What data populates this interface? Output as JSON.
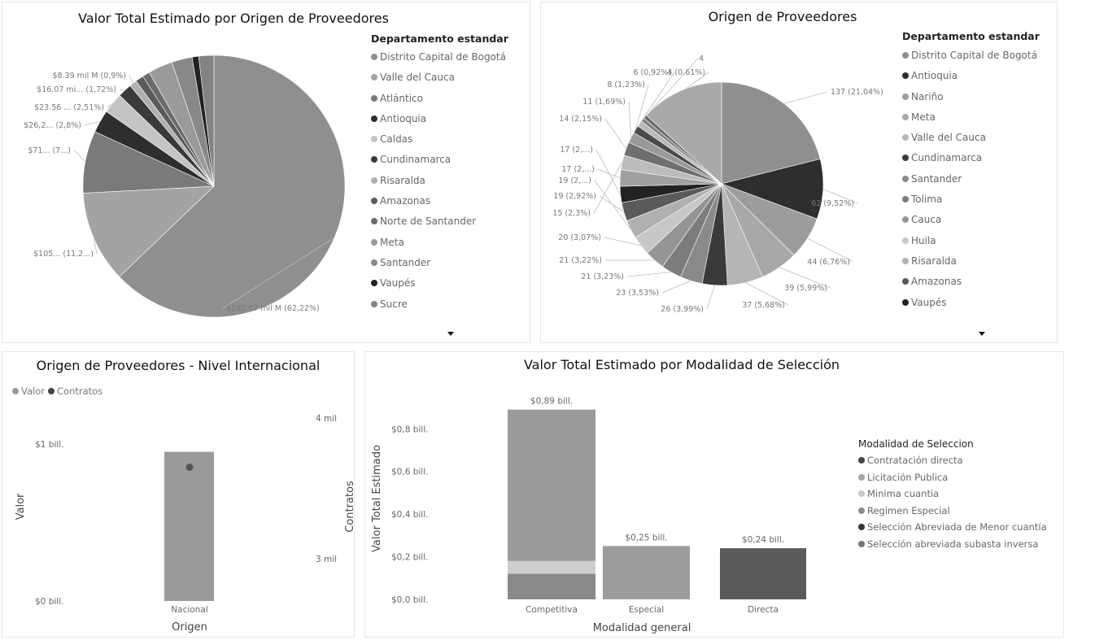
{
  "panels": {
    "pie1": {
      "title": "Valor Total Estimado por Origen de Proveedores",
      "legend_title": "Departamento estandar",
      "legend": [
        {
          "name": "Distrito Capital de Bogotá",
          "color": "#8f8f8f"
        },
        {
          "name": "Valle del Cauca",
          "color": "#a3a3a3"
        },
        {
          "name": "Atlántico",
          "color": "#7a7a7a"
        },
        {
          "name": "Antioquia",
          "color": "#2e2e2e"
        },
        {
          "name": "Caldas",
          "color": "#c4c4c4"
        },
        {
          "name": "Cundinamarca",
          "color": "#3a3a3a"
        },
        {
          "name": "Risaralda",
          "color": "#b0b0b0"
        },
        {
          "name": "Amazonas",
          "color": "#5a5a5a"
        },
        {
          "name": "Norte de Santander",
          "color": "#6a6a6a"
        },
        {
          "name": "Meta",
          "color": "#9a9a9a"
        },
        {
          "name": "Santander",
          "color": "#888888"
        },
        {
          "name": "Vaupés",
          "color": "#222222"
        },
        {
          "name": "Sucre",
          "color": "#838383"
        }
      ]
    },
    "pie2": {
      "title": "Origen de Proveedores",
      "legend_title": "Departamento estandar",
      "legend": [
        {
          "name": "Distrito Capital de Bogotá",
          "color": "#8f8f8f"
        },
        {
          "name": "Antioquia",
          "color": "#2e2e2e"
        },
        {
          "name": "Nariño",
          "color": "#9c9c9c"
        },
        {
          "name": "Meta",
          "color": "#a8a8a8"
        },
        {
          "name": "Valle del Cauca",
          "color": "#b5b5b5"
        },
        {
          "name": "Cundinamarca",
          "color": "#3a3a3a"
        },
        {
          "name": "Santander",
          "color": "#8a8a8a"
        },
        {
          "name": "Tolima",
          "color": "#7c7c7c"
        },
        {
          "name": "Cauca",
          "color": "#959595"
        },
        {
          "name": "Huila",
          "color": "#c7c7c7"
        },
        {
          "name": "Risaralda",
          "color": "#b0b0b0"
        },
        {
          "name": "Amazonas",
          "color": "#5a5a5a"
        },
        {
          "name": "Vaupés",
          "color": "#222222"
        }
      ]
    },
    "combo": {
      "title": "Origen de Proveedores - Nivel Internacional",
      "legend": [
        {
          "name": "Valor",
          "color": "#999999"
        },
        {
          "name": "Contratos",
          "color": "#444444"
        }
      ]
    },
    "stack": {
      "title": "Valor Total Estimado por Modalidad de Selección",
      "legend_title": "Modalidad de Seleccion",
      "legend": [
        {
          "name": "Contratación directa",
          "color": "#444444"
        },
        {
          "name": "Licitación Publica",
          "color": "#a6a6a6"
        },
        {
          "name": "Minima cuantia",
          "color": "#c8c8c8"
        },
        {
          "name": "Regimen Especial",
          "color": "#8c8c8c"
        },
        {
          "name": "Selección Abreviada de Menor cuantía",
          "color": "#333333"
        },
        {
          "name": "Selección abreviada subasta inversa",
          "color": "#777777"
        }
      ]
    }
  },
  "chart_data": [
    {
      "type": "pie",
      "title": "Valor Total Estimado por Origen de Proveedores",
      "slices": [
        {
          "label": "Distrito Capital de Bogotá",
          "value": 62.22,
          "text": "$592.07 mil M (62,22%)",
          "color": "#8f8f8f"
        },
        {
          "label": "Valle del Cauca",
          "value": 11.2,
          "text": "$105... (11,2...)",
          "color": "#a3a3a3"
        },
        {
          "label": "Atlántico",
          "value": 7.6,
          "text": "$71... (7...)",
          "color": "#7a7a7a"
        },
        {
          "label": "Antioquia",
          "value": 2.8,
          "text": "$26,2... (2,8%)",
          "color": "#2e2e2e"
        },
        {
          "label": "Caldas",
          "value": 2.51,
          "text": "$23.56 ... (2,51%)",
          "color": "#c4c4c4"
        },
        {
          "label": "Cundinamarca",
          "value": 1.72,
          "text": "$16.07 mi... (1,72%)",
          "color": "#3a3a3a"
        },
        {
          "label": "Risaralda",
          "value": 0.9,
          "text": "$8.39 mil M (0,9%)",
          "color": "#b0b0b0"
        },
        {
          "label": "Amazonas",
          "value": 1.0,
          "text": "",
          "color": "#5a5a5a"
        },
        {
          "label": "Norte de Santander",
          "value": 0.9,
          "text": "",
          "color": "#6a6a6a"
        },
        {
          "label": "Meta",
          "value": 3.0,
          "text": "",
          "color": "#9a9a9a"
        },
        {
          "label": "Santander",
          "value": 2.5,
          "text": "",
          "color": "#888888"
        },
        {
          "label": "Vaupés",
          "value": 0.8,
          "text": "",
          "color": "#222222"
        },
        {
          "label": "Sucre",
          "value": 1.85,
          "text": "",
          "color": "#838383"
        }
      ]
    },
    {
      "type": "pie",
      "title": "Origen de Proveedores",
      "slices": [
        {
          "label": "Distrito Capital de Bogotá",
          "value": 137,
          "text": "137 (21,04%)",
          "color": "#8f8f8f"
        },
        {
          "label": "Antioquia",
          "value": 62,
          "text": "62 (9,52%)",
          "color": "#2e2e2e"
        },
        {
          "label": "Nariño",
          "value": 44,
          "text": "44 (6,76%)",
          "color": "#9c9c9c"
        },
        {
          "label": "Meta",
          "value": 39,
          "text": "39 (5,99%)",
          "color": "#a8a8a8"
        },
        {
          "label": "Valle del Cauca",
          "value": 37,
          "text": "37 (5,68%)",
          "color": "#b5b5b5"
        },
        {
          "label": "Cundinamarca",
          "value": 26,
          "text": "26 (3,99%)",
          "color": "#3a3a3a"
        },
        {
          "label": "Santander",
          "value": 23,
          "text": "23 (3,53%)",
          "color": "#8a8a8a"
        },
        {
          "label": "Tolima",
          "value": 21,
          "text": "21 (3,23%)",
          "color": "#7c7c7c"
        },
        {
          "label": "Cauca",
          "value": 21,
          "text": "21 (3,22%)",
          "color": "#959595"
        },
        {
          "label": "Huila",
          "value": 20,
          "text": "20 (3,07%)",
          "color": "#c7c7c7"
        },
        {
          "label": "Risaralda",
          "value": 19,
          "text": "19 (2,...)",
          "color": "#b0b0b0"
        },
        {
          "label": "Amazonas",
          "value": 19,
          "text": "19 (2,92%)",
          "color": "#5a5a5a"
        },
        {
          "label": "Vaupés",
          "value": 17,
          "text": "17 (2,...)",
          "color": "#222222"
        },
        {
          "label": "",
          "value": 17,
          "text": "17 (2,...)",
          "color": "#a0a0a0"
        },
        {
          "label": "",
          "value": 15,
          "text": "15 (2,3%)",
          "color": "#bcbcbc"
        },
        {
          "label": "",
          "value": 14,
          "text": "14 (2,15%)",
          "color": "#6f6f6f"
        },
        {
          "label": "",
          "value": 11,
          "text": "11 (1,69%)",
          "color": "#999999"
        },
        {
          "label": "",
          "value": 8,
          "text": "8 (1,23%)",
          "color": "#4a4a4a"
        },
        {
          "label": "",
          "value": 6,
          "text": "6 (0,92%)",
          "color": "#b8b8b8"
        },
        {
          "label": "",
          "value": 4,
          "text": "4 (0,61%)",
          "color": "#808080"
        },
        {
          "label": "",
          "value": 4,
          "text": "4",
          "color": "#6a6a6a"
        },
        {
          "label": "",
          "value": 86,
          "text": "",
          "color": "#a9a9a9"
        }
      ]
    },
    {
      "type": "bar",
      "title": "Origen de Proveedores - Nivel Internacional",
      "categories": [
        "Nacional"
      ],
      "series": [
        {
          "name": "Valor",
          "values": [
            0.95
          ]
        },
        {
          "name": "Contratos",
          "values": [
            3650
          ]
        }
      ],
      "xlabel": "Origen",
      "ylabel": "Valor",
      "y2label": "Contratos",
      "y_ticks": [
        "$0 bill.",
        "$1 bill."
      ],
      "y2_ticks": [
        "3 mil",
        "4 mil"
      ],
      "ylim": [
        0,
        1.3
      ],
      "y2lim": [
        2700,
        4150
      ]
    },
    {
      "type": "bar",
      "title": "Valor Total Estimado por Modalidad de Selección",
      "categories": [
        "Competitiva",
        "Especial",
        "Directa"
      ],
      "xlabel": "Modalidad general",
      "ylabel": "Valor Total Estimado",
      "ylim": [
        0,
        0.95
      ],
      "y_ticks": [
        0,
        0.2,
        0.4,
        0.6,
        0.8
      ],
      "y_tick_labels": [
        "$0,0 bill.",
        "$0,2 bill.",
        "$0,4 bill.",
        "$0,6 bill.",
        "$0,8 bill."
      ],
      "totals_text": [
        "$0,89 bill.",
        "$0,25 bill.",
        "$0,24 bill."
      ],
      "stacks": [
        [
          {
            "name": "Selección abreviada subasta inversa",
            "value": 0.12,
            "color": "#8a8a8a"
          },
          {
            "name": "Minima cuantia",
            "value": 0.06,
            "color": "#cfcfcf"
          },
          {
            "name": "Licitación Publica",
            "value": 0.71,
            "color": "#9a9a9a"
          }
        ],
        [
          {
            "name": "Regimen Especial",
            "value": 0.25,
            "color": "#9c9c9c"
          }
        ],
        [
          {
            "name": "Contratación directa",
            "value": 0.24,
            "color": "#5a5a5a"
          }
        ]
      ]
    }
  ]
}
